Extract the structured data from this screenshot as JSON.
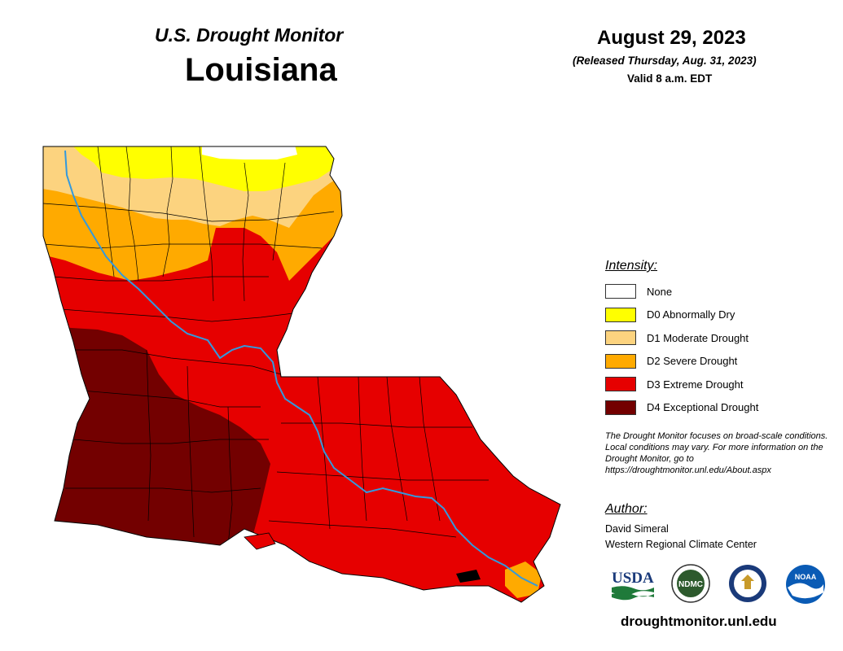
{
  "header": {
    "monitor_title": "U.S. Drought Monitor",
    "state": "Louisiana",
    "date": "August 29, 2023",
    "released": "(Released Thursday, Aug. 31, 2023)",
    "valid": "Valid 8 a.m. EDT"
  },
  "legend": {
    "title": "Intensity:",
    "items": [
      {
        "label": "None",
        "color": "#ffffff"
      },
      {
        "label": "D0 Abnormally Dry",
        "color": "#ffff00"
      },
      {
        "label": "D1 Moderate Drought",
        "color": "#fcd37f"
      },
      {
        "label": "D2 Severe Drought",
        "color": "#ffaa00"
      },
      {
        "label": "D3 Extreme Drought",
        "color": "#e60000"
      },
      {
        "label": "D4 Exceptional Drought",
        "color": "#730000"
      }
    ]
  },
  "disclaimer": "The Drought Monitor focuses on broad-scale conditions. Local conditions may vary. For more information on the Drought Monitor, go to https://droughtmonitor.unl.edu/About.aspx",
  "author": {
    "heading": "Author:",
    "name": "David Simeral",
    "organization": "Western Regional Climate Center"
  },
  "logos": [
    {
      "name": "usda-logo",
      "text": "USDA"
    },
    {
      "name": "ndmc-logo",
      "text": "NDMC"
    },
    {
      "name": "doc-seal-logo",
      "text": ""
    },
    {
      "name": "noaa-logo",
      "text": "NOAA"
    }
  ],
  "site_url": "droughtmonitor.unl.edu",
  "colors": {
    "river": "#3399dd",
    "county_lines": "#000000"
  }
}
